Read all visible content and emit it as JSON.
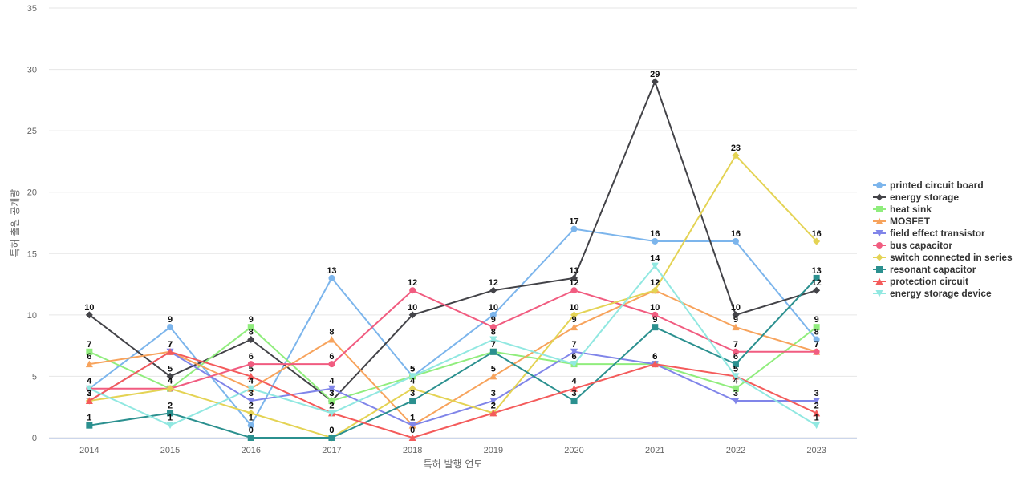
{
  "chart_data": {
    "type": "line",
    "title": "",
    "xlabel": "특허 발행 연도",
    "ylabel": "특허 출원 공개량",
    "x": [
      "2014",
      "2015",
      "2016",
      "2017",
      "2018",
      "2019",
      "2020",
      "2021",
      "2022",
      "2023"
    ],
    "ylim": [
      0,
      35
    ],
    "yticks": [
      0,
      5,
      10,
      15,
      20,
      25,
      30,
      35
    ],
    "grid": true,
    "legend_position": "right",
    "series": [
      {
        "name": "printed circuit board",
        "color": "#7cb5ec",
        "marker": "circle",
        "values": [
          4,
          9,
          1,
          13,
          5,
          10,
          17,
          16,
          16,
          8
        ]
      },
      {
        "name": "energy storage",
        "color": "#434348",
        "marker": "diamond",
        "values": [
          10,
          5,
          8,
          3,
          10,
          12,
          13,
          29,
          10,
          12
        ]
      },
      {
        "name": "heat sink",
        "color": "#90ed7d",
        "marker": "square",
        "values": [
          7,
          4,
          9,
          3,
          5,
          7,
          6,
          6,
          4,
          9
        ]
      },
      {
        "name": "MOSFET",
        "color": "#f7a35c",
        "marker": "triangle",
        "values": [
          6,
          7,
          4,
          8,
          1,
          5,
          9,
          12,
          9,
          7
        ]
      },
      {
        "name": "field effect transistor",
        "color": "#8085e9",
        "marker": "triangle-down",
        "values": [
          3,
          7,
          3,
          4,
          1,
          3,
          7,
          6,
          3,
          3
        ]
      },
      {
        "name": "bus capacitor",
        "color": "#f15c80",
        "marker": "circle",
        "values": [
          4,
          4,
          6,
          6,
          12,
          9,
          12,
          10,
          7,
          7
        ]
      },
      {
        "name": "switch connected in series",
        "color": "#e4d354",
        "marker": "diamond",
        "values": [
          3,
          4,
          2,
          0,
          4,
          2,
          10,
          12,
          23,
          16
        ]
      },
      {
        "name": "resonant capacitor",
        "color": "#2b908f",
        "marker": "square",
        "values": [
          1,
          2,
          0,
          0,
          3,
          7,
          3,
          9,
          6,
          13
        ]
      },
      {
        "name": "protection circuit",
        "color": "#f45b5b",
        "marker": "triangle",
        "values": [
          3,
          7,
          5,
          2,
          0,
          2,
          4,
          6,
          5,
          2
        ]
      },
      {
        "name": "energy storage device",
        "color": "#91e8e1",
        "marker": "triangle-down",
        "values": [
          4,
          1,
          4,
          2,
          5,
          8,
          6,
          14,
          5,
          1
        ]
      }
    ]
  }
}
